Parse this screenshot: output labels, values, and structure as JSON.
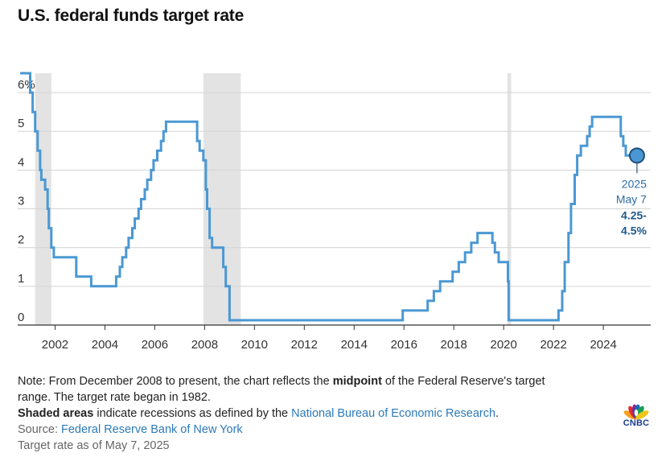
{
  "title": "U.S. federal funds target rate",
  "chart_data": {
    "type": "line",
    "xlim": [
      2000.5,
      2025.9
    ],
    "ylim": [
      0,
      6.5
    ],
    "y_ticks": [
      {
        "value": 6,
        "label": "6%"
      },
      {
        "value": 5,
        "label": "5"
      },
      {
        "value": 4,
        "label": "4"
      },
      {
        "value": 3,
        "label": "3"
      },
      {
        "value": 2,
        "label": "2"
      },
      {
        "value": 1,
        "label": "1"
      },
      {
        "value": 0,
        "label": "0"
      }
    ],
    "x_ticks": [
      "2002",
      "2004",
      "2006",
      "2008",
      "2010",
      "2012",
      "2014",
      "2016",
      "2018",
      "2020",
      "2022",
      "2024"
    ],
    "grid": "horizontal",
    "line_color": "#4a98d3",
    "recession_color": "#e3e3e3",
    "recessions": [
      [
        2001.2,
        2001.85
      ],
      [
        2007.95,
        2009.45
      ],
      [
        2020.15,
        2020.3
      ]
    ],
    "series": [
      {
        "x": [
          2000.6,
          2001.0,
          2001.1,
          2001.2,
          2001.3,
          2001.4,
          2001.45,
          2001.6,
          2001.7,
          2001.75,
          2001.85,
          2001.95,
          2002.85,
          2003.45,
          2004.45,
          2004.6,
          2004.7,
          2004.85,
          2004.95,
          2005.1,
          2005.2,
          2005.35,
          2005.45,
          2005.6,
          2005.7,
          2005.85,
          2005.95,
          2006.1,
          2006.25,
          2006.35,
          2006.45,
          2007.7,
          2007.8,
          2007.95,
          2008.05,
          2008.1,
          2008.2,
          2008.3,
          2008.75,
          2008.85,
          2009.0,
          2015.95,
          2016.95,
          2017.2,
          2017.45,
          2017.95,
          2018.2,
          2018.45,
          2018.7,
          2018.95,
          2019.55,
          2019.65,
          2019.8,
          2020.17,
          2020.2,
          2022.2,
          2022.35,
          2022.45,
          2022.6,
          2022.7,
          2022.85,
          2022.95,
          2023.1,
          2023.35,
          2023.45,
          2023.55,
          2024.7,
          2024.8,
          2024.9,
          2025.35
        ],
        "y": [
          6.5,
          6.0,
          5.5,
          5.0,
          4.5,
          4.0,
          3.75,
          3.5,
          3.0,
          2.5,
          2.0,
          1.75,
          1.25,
          1.0,
          1.25,
          1.5,
          1.75,
          2.0,
          2.25,
          2.5,
          2.75,
          3.0,
          3.25,
          3.5,
          3.75,
          4.0,
          4.25,
          4.5,
          4.75,
          5.0,
          5.25,
          4.75,
          4.5,
          4.25,
          3.5,
          3.0,
          2.25,
          2.0,
          1.5,
          1.0,
          0.125,
          0.375,
          0.625,
          0.875,
          1.125,
          1.375,
          1.625,
          1.875,
          2.125,
          2.375,
          2.125,
          1.875,
          1.625,
          1.125,
          0.125,
          0.375,
          0.875,
          1.625,
          2.375,
          3.125,
          3.875,
          4.375,
          4.625,
          4.875,
          5.125,
          5.375,
          4.875,
          4.625,
          4.375,
          4.375
        ]
      }
    ],
    "annotation": {
      "x": 2025.35,
      "y": 4.375,
      "year": "2025",
      "date": "May 7",
      "value_line1": "4.25-",
      "value_line2": "4.5%"
    }
  },
  "notes": {
    "line1_pre": "Note: From December 2008 to present, the chart reflects the ",
    "line1_bold": "midpoint",
    "line1_post": " of the Federal Reserve's target",
    "line2": "range. The target rate began in 1982.",
    "line3_bold": "Shaded areas",
    "line3_mid": " indicate recessions as defined by the ",
    "line3_link": "National Bureau of Economic Research",
    "line3_end": ".",
    "source_label": "Source: ",
    "source_link": "Federal Reserve Bank of New York",
    "asof": "Target rate as of May 7, 2025"
  },
  "logo": {
    "text": "CNBC",
    "peacock_colors": [
      "#f6a21c",
      "#e8282d",
      "#7a2f8f",
      "#1a67b3",
      "#17a050",
      "#f0c419"
    ]
  }
}
